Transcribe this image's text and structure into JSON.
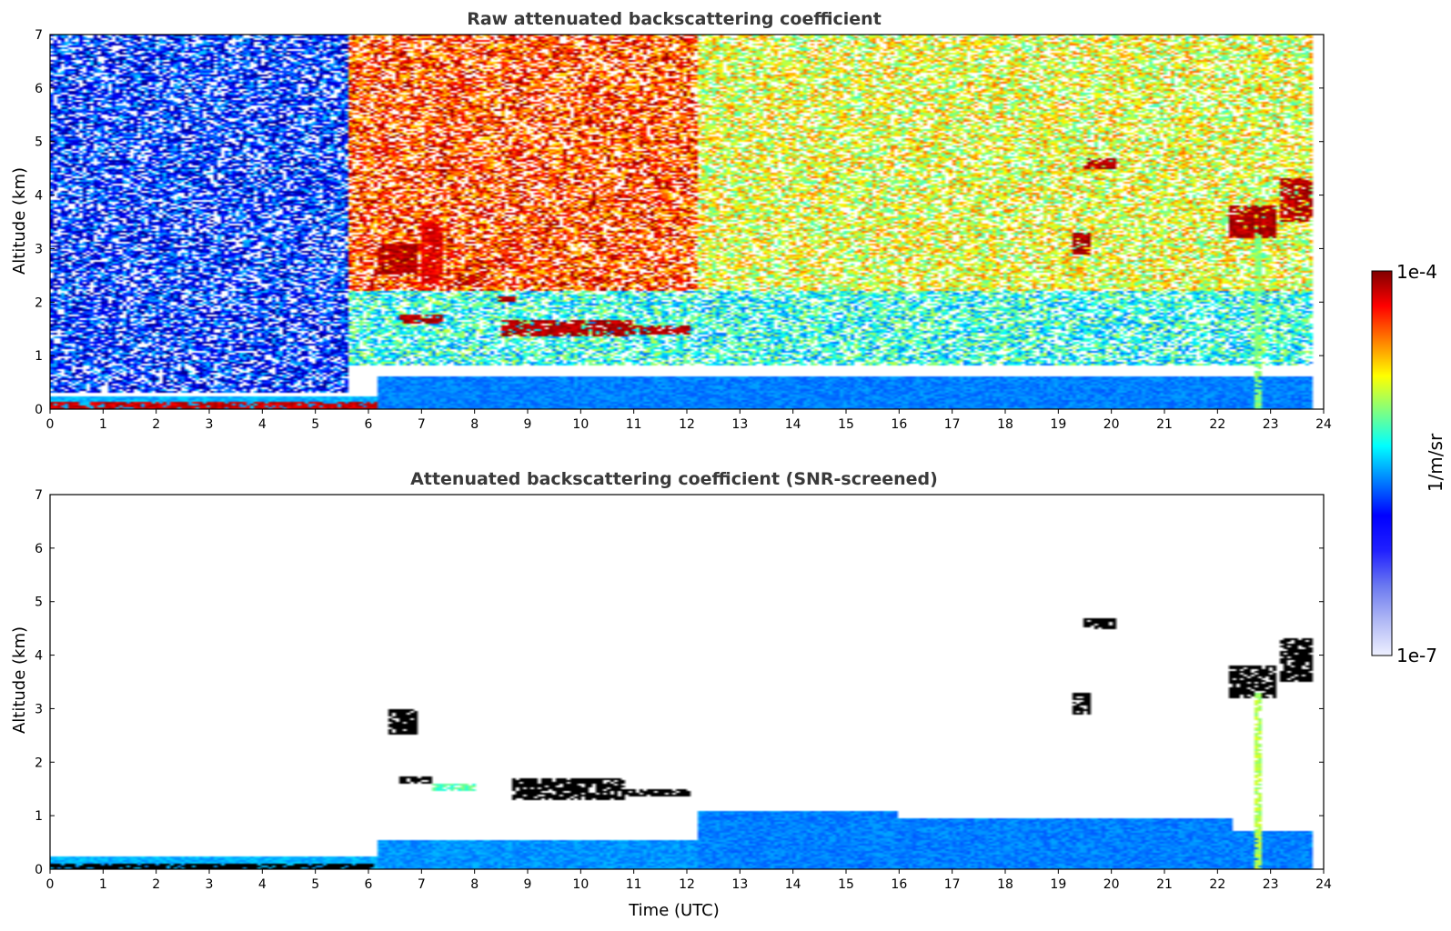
{
  "colors": {
    "colormap_jet": [
      "#00008f",
      "#0000ff",
      "#0080ff",
      "#00ffff",
      "#80ff80",
      "#ffff00",
      "#ff8000",
      "#ff0000",
      "#800000"
    ],
    "colormap_low": [
      "#eef0ff",
      "#b0b8f5",
      "#6a78f0",
      "#2020ff"
    ],
    "frame": "#000000",
    "title": "#3a3a3a"
  },
  "chart_data": [
    {
      "type": "heatmap",
      "title": "Raw attenuated backscattering coefficient",
      "xlabel": "",
      "ylabel": "Altitude (km)",
      "xlim": [
        0,
        24
      ],
      "ylim": [
        0,
        7
      ],
      "xticks": [
        "0",
        "1",
        "2",
        "3",
        "4",
        "5",
        "6",
        "7",
        "8",
        "9",
        "10",
        "11",
        "12",
        "13",
        "14",
        "15",
        "16",
        "17",
        "18",
        "19",
        "20",
        "21",
        "22",
        "23",
        "24"
      ],
      "yticks": [
        "0",
        "1",
        "2",
        "3",
        "4",
        "5",
        "6",
        "7"
      ],
      "data_extent_x": [
        0,
        23.8
      ],
      "layers": [
        {
          "feature": "background upper air",
          "x": [
            0,
            5.6
          ],
          "y": [
            0.3,
            7
          ],
          "level": 0.15,
          "mode": "noise"
        },
        {
          "feature": "background upper air",
          "x": [
            5.6,
            12.2
          ],
          "y": [
            2.2,
            7
          ],
          "level": 0.82,
          "mode": "noise"
        },
        {
          "feature": "background upper air",
          "x": [
            12.2,
            23.8
          ],
          "y": [
            2.2,
            7
          ],
          "level": 0.6,
          "mode": "noise"
        },
        {
          "feature": "mid air",
          "x": [
            5.6,
            23.8
          ],
          "y": [
            0.8,
            2.2
          ],
          "level": 0.4,
          "mode": "noise"
        },
        {
          "feature": "boundary layer",
          "x": [
            0,
            6.2
          ],
          "y": [
            0,
            0.25
          ],
          "level": 0.3,
          "mode": "solid"
        },
        {
          "feature": "boundary layer",
          "x": [
            6.2,
            23.8
          ],
          "y": [
            0,
            0.6
          ],
          "level": 0.25,
          "mode": "solid"
        }
      ],
      "clouds": [
        {
          "x": [
            0,
            6.2
          ],
          "y": [
            0,
            0.12
          ],
          "level": 0.92
        },
        {
          "x": [
            6.2,
            6.9
          ],
          "y": [
            2.5,
            3.1
          ],
          "level": 0.95
        },
        {
          "x": [
            6.6,
            7.4
          ],
          "y": [
            1.6,
            1.75
          ],
          "level": 0.95
        },
        {
          "x": [
            7.7,
            8.0
          ],
          "y": [
            2.3,
            2.5
          ],
          "level": 0.95
        },
        {
          "x": [
            8.4,
            8.8
          ],
          "y": [
            2.0,
            2.1
          ],
          "level": 0.95
        },
        {
          "x": [
            8.5,
            11.0
          ],
          "y": [
            1.35,
            1.65
          ],
          "level": 0.95
        },
        {
          "x": [
            11.0,
            12.1
          ],
          "y": [
            1.4,
            1.55
          ],
          "level": 0.95
        },
        {
          "x": [
            7.0,
            7.4
          ],
          "y": [
            2.3,
            3.5
          ],
          "level": 0.9
        },
        {
          "x": [
            19.3,
            19.6
          ],
          "y": [
            2.9,
            3.3
          ],
          "level": 0.95
        },
        {
          "x": [
            19.5,
            20.1
          ],
          "y": [
            4.5,
            4.7
          ],
          "level": 0.95
        },
        {
          "x": [
            22.2,
            23.1
          ],
          "y": [
            3.2,
            3.8
          ],
          "level": 0.95
        },
        {
          "x": [
            23.2,
            23.8
          ],
          "y": [
            3.5,
            4.3
          ],
          "level": 0.95
        },
        {
          "x": [
            22.7,
            22.85
          ],
          "y": [
            0,
            3.3
          ],
          "level": 0.5
        }
      ]
    },
    {
      "type": "heatmap",
      "title": "Attenuated backscattering coefficient (SNR-screened)",
      "xlabel": "Time (UTC)",
      "ylabel": "Altitude (km)",
      "xlim": [
        0,
        24
      ],
      "ylim": [
        0,
        7
      ],
      "xticks": [
        "0",
        "1",
        "2",
        "3",
        "4",
        "5",
        "6",
        "7",
        "8",
        "9",
        "10",
        "11",
        "12",
        "13",
        "14",
        "15",
        "16",
        "17",
        "18",
        "19",
        "20",
        "21",
        "22",
        "23",
        "24"
      ],
      "yticks": [
        "0",
        "1",
        "2",
        "3",
        "4",
        "5",
        "6",
        "7"
      ],
      "layers": [
        {
          "feature": "boundary layer",
          "x": [
            0,
            6.2
          ],
          "y": [
            0,
            0.25
          ],
          "level": 0.3,
          "mode": "solid"
        },
        {
          "feature": "boundary layer",
          "x": [
            6.2,
            12.2
          ],
          "y": [
            0,
            0.55
          ],
          "level": 0.27,
          "mode": "solid"
        },
        {
          "feature": "boundary layer",
          "x": [
            12.2,
            16.0
          ],
          "y": [
            0,
            1.1
          ],
          "level": 0.25,
          "mode": "solid"
        },
        {
          "feature": "boundary layer",
          "x": [
            16.0,
            22.3
          ],
          "y": [
            0,
            0.95
          ],
          "level": 0.25,
          "mode": "solid"
        },
        {
          "feature": "boundary layer",
          "x": [
            22.3,
            23.8
          ],
          "y": [
            0,
            0.7
          ],
          "level": 0.25,
          "mode": "solid"
        }
      ],
      "clouds": [
        {
          "x": [
            0,
            6.2
          ],
          "y": [
            0,
            0.1
          ],
          "level": 1.0
        },
        {
          "x": [
            6.4,
            6.9
          ],
          "y": [
            2.5,
            3.0
          ],
          "level": 1.0
        },
        {
          "x": [
            6.6,
            7.2
          ],
          "y": [
            1.6,
            1.72
          ],
          "level": 1.0
        },
        {
          "x": [
            7.2,
            8.0
          ],
          "y": [
            1.45,
            1.6
          ],
          "level": 0.45
        },
        {
          "x": [
            8.7,
            10.8
          ],
          "y": [
            1.3,
            1.7
          ],
          "level": 1.0
        },
        {
          "x": [
            10.8,
            12.1
          ],
          "y": [
            1.35,
            1.5
          ],
          "level": 1.0
        },
        {
          "x": [
            19.3,
            19.6
          ],
          "y": [
            2.9,
            3.3
          ],
          "level": 1.0
        },
        {
          "x": [
            19.5,
            20.1
          ],
          "y": [
            4.5,
            4.7
          ],
          "level": 1.0
        },
        {
          "x": [
            22.2,
            23.1
          ],
          "y": [
            3.2,
            3.8
          ],
          "level": 1.0
        },
        {
          "x": [
            23.2,
            23.8
          ],
          "y": [
            3.5,
            4.3
          ],
          "level": 1.0
        },
        {
          "x": [
            22.7,
            22.85
          ],
          "y": [
            0,
            3.3
          ],
          "level": 0.55
        }
      ]
    }
  ],
  "colorbar": {
    "label": "1/m/sr",
    "max_label": "1e-4",
    "min_label": "1e-7",
    "range": [
      1e-07,
      0.0001
    ],
    "scale": "log"
  }
}
